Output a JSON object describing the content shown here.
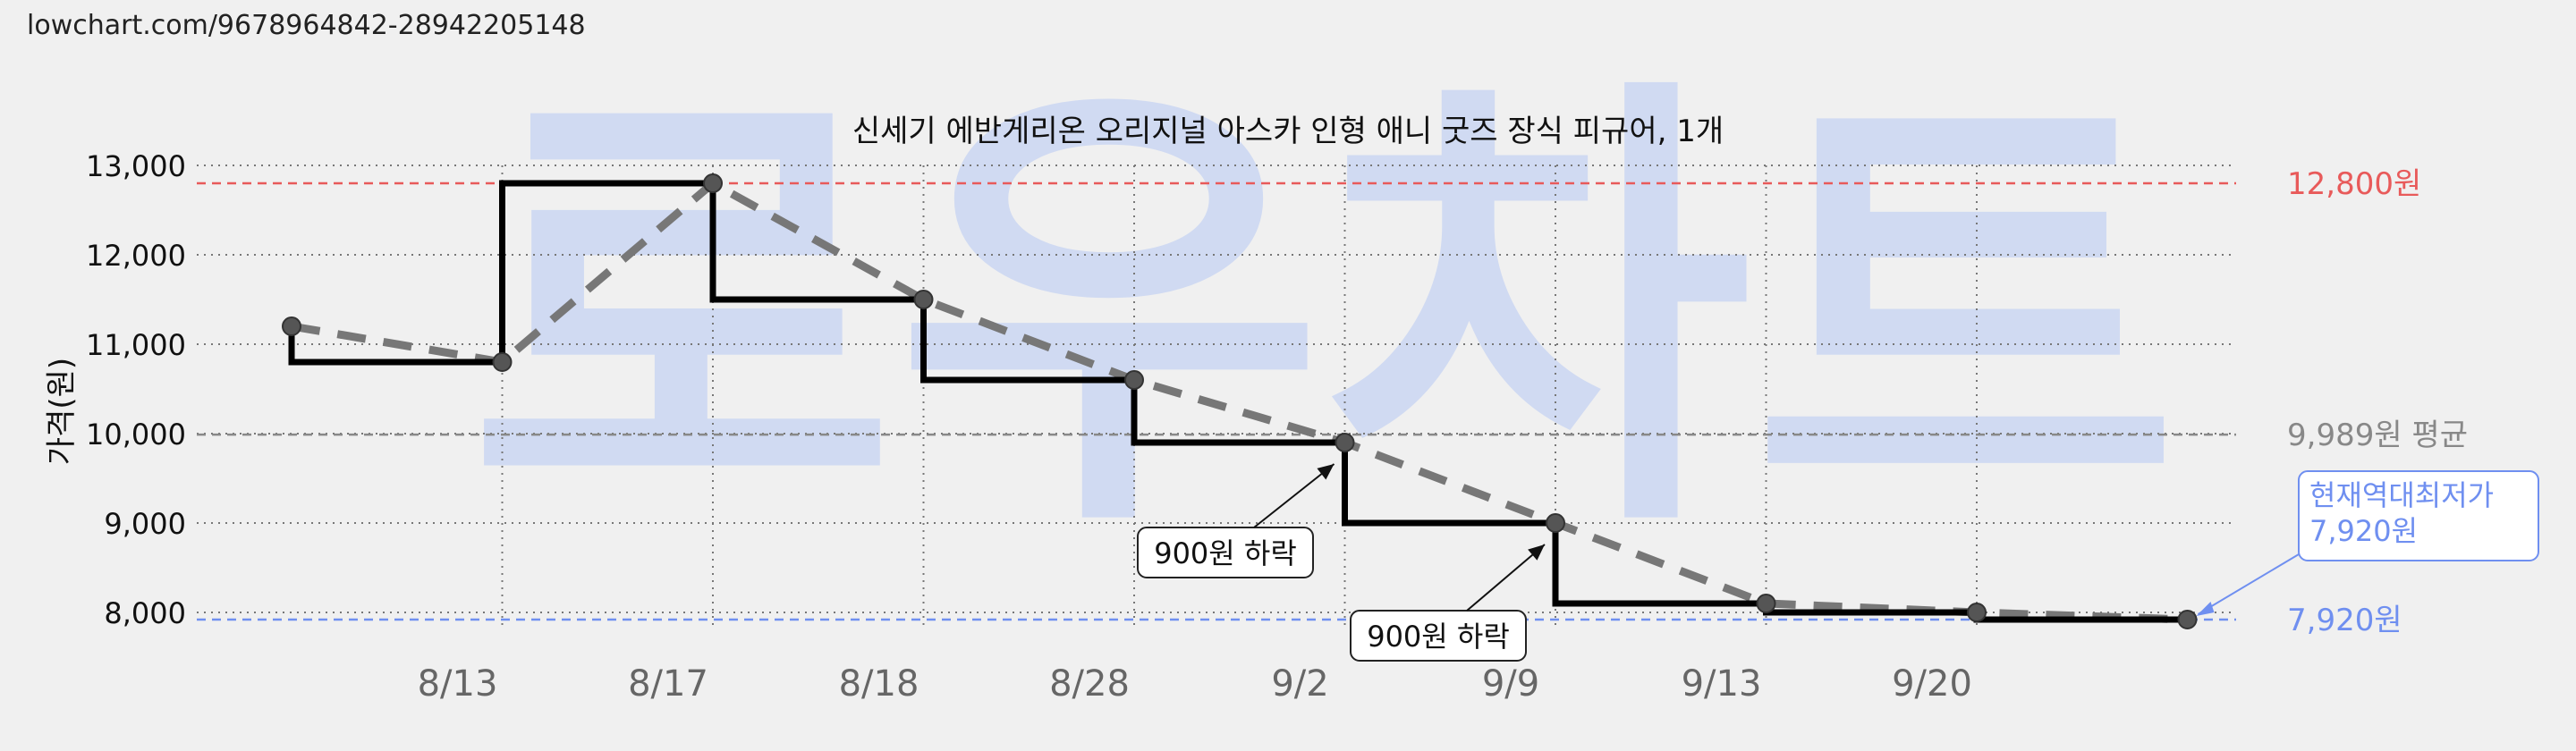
{
  "url": "lowchart.com/9678964842-28942205148",
  "watermark": "로우차트",
  "chart_data": {
    "type": "line",
    "title": "신세기 에반게리온 오리지널 아스카 인형 애니 굿즈 장식 피규어, 1개",
    "ylabel": "가격(원)",
    "xlabel": "",
    "ylim": [
      7800,
      13000
    ],
    "yticks": [
      8000,
      9000,
      10000,
      11000,
      12000,
      13000
    ],
    "ytick_labels": [
      "8,000",
      "9,000",
      "10,000",
      "11,000",
      "12,000",
      "13,000"
    ],
    "xtick_labels": [
      "8/13",
      "8/17",
      "8/18",
      "8/28",
      "9/2",
      "9/9",
      "9/13",
      "9/20"
    ],
    "grid": true,
    "series": [
      {
        "name": "",
        "style": "step",
        "color": "#000000",
        "points": [
          {
            "x": 0,
            "y": 11200
          },
          {
            "x": 1,
            "y": 10800
          },
          {
            "x": 2,
            "y": 12800
          },
          {
            "x": 3,
            "y": 11500
          },
          {
            "x": 4,
            "y": 10600
          },
          {
            "x": 5,
            "y": 9900
          },
          {
            "x": 6,
            "y": 9000
          },
          {
            "x": 7,
            "y": 8100
          },
          {
            "x": 8,
            "y": 8000
          },
          {
            "x": 9,
            "y": 7920
          }
        ]
      },
      {
        "name": "",
        "style": "dashed-trend",
        "color": "#777777",
        "points": [
          {
            "x": 0,
            "y": 11200
          },
          {
            "x": 1,
            "y": 10800
          },
          {
            "x": 2,
            "y": 12800
          },
          {
            "x": 3,
            "y": 11500
          },
          {
            "x": 4,
            "y": 10600
          },
          {
            "x": 5,
            "y": 9900
          },
          {
            "x": 6,
            "y": 9000
          },
          {
            "x": 7,
            "y": 8100
          },
          {
            "x": 8,
            "y": 8000
          },
          {
            "x": 9,
            "y": 7920
          }
        ]
      }
    ],
    "reference_lines": [
      {
        "value": 12800,
        "label": "12,800원",
        "color": "#e85a5a"
      },
      {
        "value": 9989,
        "label": "9,989원 평균",
        "color": "#888888"
      },
      {
        "value": 7920,
        "label": "7,920원",
        "color": "#6f8ff0"
      }
    ],
    "annotations": [
      {
        "text": "900원 하락",
        "x": 5,
        "y": 9900
      },
      {
        "text": "900원 하락",
        "x": 6,
        "y": 9000
      }
    ],
    "current_low": {
      "line1": "현재역대최저가",
      "line2": "7,920원",
      "color": "#6f8ff0"
    }
  }
}
